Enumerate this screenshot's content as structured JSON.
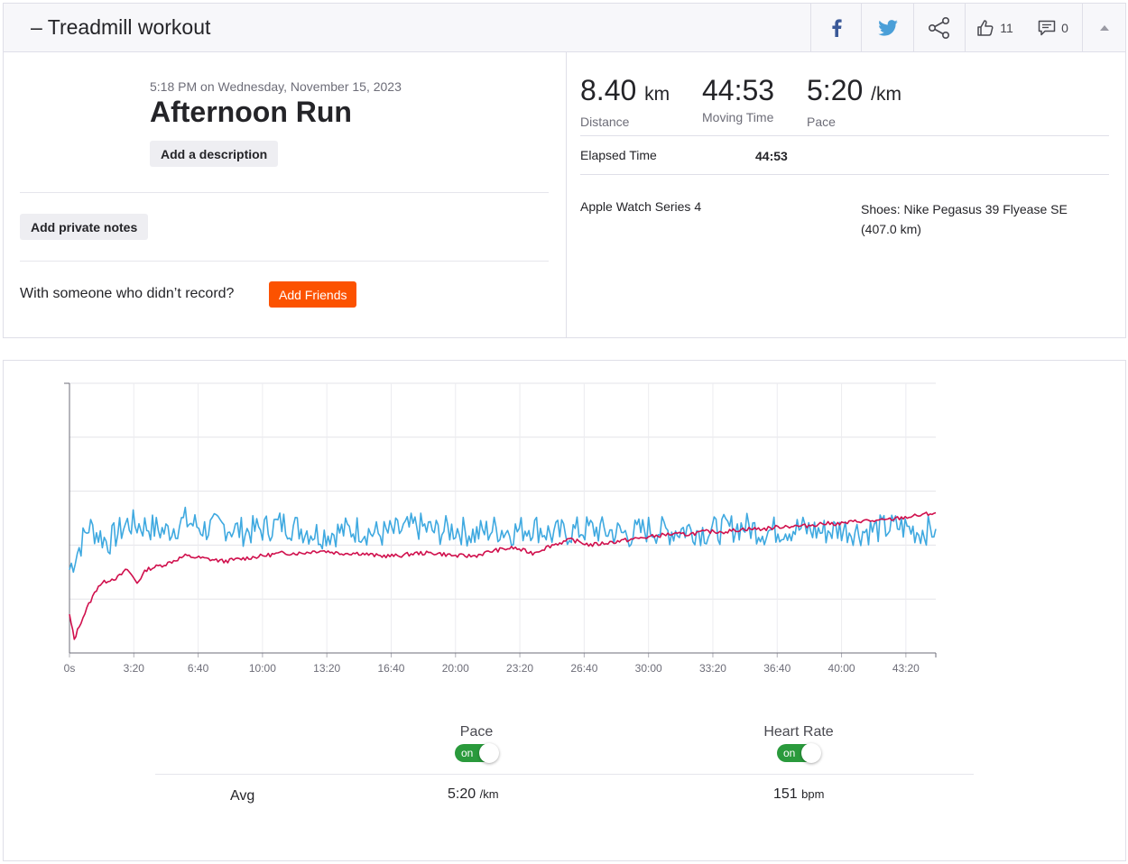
{
  "header": {
    "title": "– Treadmill workout",
    "kudos_count": "11",
    "comments_count": "0"
  },
  "activity": {
    "datetime": "5:18 PM on Wednesday, November 15, 2023",
    "name": "Afternoon Run",
    "add_description_label": "Add a description",
    "add_private_notes_label": "Add private notes",
    "with_someone_text": "With someone who didn’t record?",
    "add_friends_label": "Add Friends"
  },
  "stats": {
    "distance_value": "8.40",
    "distance_unit": "km",
    "distance_label": "Distance",
    "moving_time_value": "44:53",
    "moving_time_label": "Moving Time",
    "pace_value": "5:20",
    "pace_unit": "/km",
    "pace_label": "Pace",
    "elapsed_label": "Elapsed Time",
    "elapsed_value": "44:53",
    "device": "Apple Watch Series 4",
    "shoes": "Shoes: Nike Pegasus 39 Flyease SE (407.0 km)"
  },
  "chart_toggles": {
    "pace_title": "Pace",
    "pace_state": "on",
    "hr_title": "Heart Rate",
    "hr_state": "on"
  },
  "averages": {
    "label": "Avg",
    "pace_value": "5:20",
    "pace_unit": "/km",
    "hr_value": "151",
    "hr_unit": "bpm"
  },
  "colors": {
    "brand_orange": "#fc5200",
    "pace_line": "#3fa9e0",
    "hr_line": "#d0104d",
    "toggle_on": "#2a9a3c"
  },
  "chart_data": {
    "type": "line",
    "x_unit": "elapsed time (s)",
    "x_ticks": [
      "0s",
      "3:20",
      "6:40",
      "10:00",
      "13:20",
      "16:40",
      "20:00",
      "23:20",
      "26:40",
      "30:00",
      "33:20",
      "36:40",
      "40:00",
      "43:20"
    ],
    "xlim": [
      0,
      2693
    ],
    "grid": true,
    "series": [
      {
        "name": "Pace",
        "color": "#3fa9e0",
        "points": [
          [
            0,
            0.31
          ],
          [
            30,
            0.39
          ],
          [
            60,
            0.47
          ],
          [
            120,
            0.41
          ],
          [
            180,
            0.48
          ],
          [
            240,
            0.47
          ],
          [
            300,
            0.45
          ],
          [
            360,
            0.49
          ],
          [
            420,
            0.46
          ],
          [
            480,
            0.47
          ],
          [
            540,
            0.45
          ],
          [
            600,
            0.46
          ],
          [
            660,
            0.48
          ],
          [
            720,
            0.46
          ],
          [
            780,
            0.44
          ],
          [
            840,
            0.45
          ],
          [
            900,
            0.46
          ],
          [
            960,
            0.44
          ],
          [
            1020,
            0.45
          ],
          [
            1080,
            0.47
          ],
          [
            1140,
            0.45
          ],
          [
            1200,
            0.46
          ],
          [
            1260,
            0.44
          ],
          [
            1320,
            0.46
          ],
          [
            1380,
            0.45
          ],
          [
            1440,
            0.47
          ],
          [
            1500,
            0.44
          ],
          [
            1560,
            0.45
          ],
          [
            1620,
            0.46
          ],
          [
            1680,
            0.45
          ],
          [
            1740,
            0.44
          ],
          [
            1800,
            0.46
          ],
          [
            1860,
            0.45
          ],
          [
            1920,
            0.46
          ],
          [
            1980,
            0.45
          ],
          [
            2040,
            0.46
          ],
          [
            2100,
            0.47
          ],
          [
            2160,
            0.45
          ],
          [
            2220,
            0.46
          ],
          [
            2280,
            0.46
          ],
          [
            2340,
            0.45
          ],
          [
            2400,
            0.46
          ],
          [
            2460,
            0.45
          ],
          [
            2520,
            0.46
          ],
          [
            2580,
            0.47
          ],
          [
            2640,
            0.45
          ],
          [
            2693,
            0.46
          ]
        ]
      },
      {
        "name": "Heart Rate",
        "color": "#d0104d",
        "points": [
          [
            0,
            0.14
          ],
          [
            15,
            0.05
          ],
          [
            30,
            0.1
          ],
          [
            60,
            0.18
          ],
          [
            90,
            0.25
          ],
          [
            120,
            0.27
          ],
          [
            150,
            0.28
          ],
          [
            180,
            0.31
          ],
          [
            210,
            0.26
          ],
          [
            240,
            0.31
          ],
          [
            300,
            0.33
          ],
          [
            360,
            0.36
          ],
          [
            420,
            0.35
          ],
          [
            480,
            0.34
          ],
          [
            540,
            0.35
          ],
          [
            600,
            0.36
          ],
          [
            660,
            0.37
          ],
          [
            720,
            0.37
          ],
          [
            780,
            0.38
          ],
          [
            840,
            0.37
          ],
          [
            900,
            0.37
          ],
          [
            960,
            0.36
          ],
          [
            1020,
            0.36
          ],
          [
            1080,
            0.37
          ],
          [
            1140,
            0.37
          ],
          [
            1200,
            0.36
          ],
          [
            1260,
            0.36
          ],
          [
            1320,
            0.38
          ],
          [
            1380,
            0.39
          ],
          [
            1440,
            0.37
          ],
          [
            1500,
            0.4
          ],
          [
            1560,
            0.42
          ],
          [
            1620,
            0.4
          ],
          [
            1680,
            0.41
          ],
          [
            1740,
            0.42
          ],
          [
            1800,
            0.43
          ],
          [
            1860,
            0.44
          ],
          [
            1920,
            0.44
          ],
          [
            1980,
            0.45
          ],
          [
            2040,
            0.45
          ],
          [
            2100,
            0.46
          ],
          [
            2160,
            0.46
          ],
          [
            2220,
            0.47
          ],
          [
            2280,
            0.47
          ],
          [
            2340,
            0.48
          ],
          [
            2400,
            0.48
          ],
          [
            2460,
            0.49
          ],
          [
            2520,
            0.49
          ],
          [
            2580,
            0.5
          ],
          [
            2640,
            0.51
          ],
          [
            2693,
            0.52
          ]
        ]
      }
    ]
  }
}
